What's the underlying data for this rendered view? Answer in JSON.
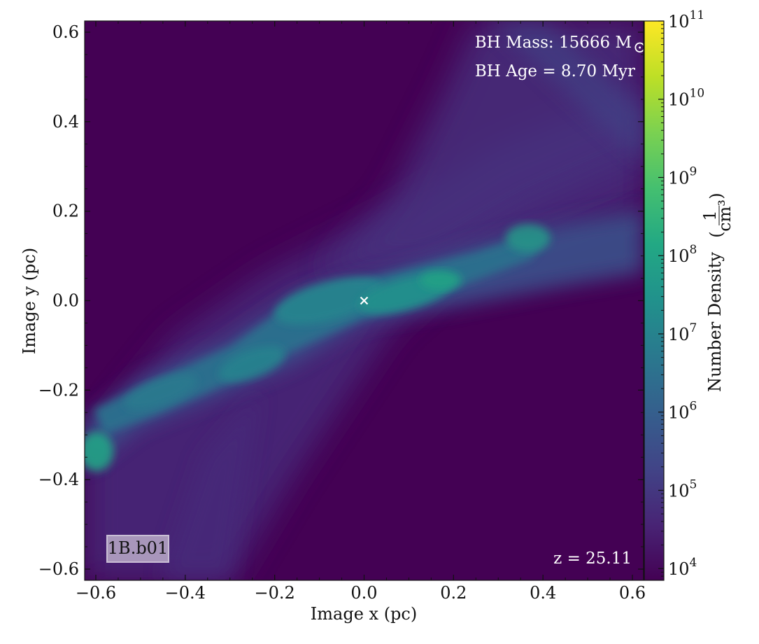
{
  "chart_data": {
    "type": "heatmap",
    "title": "",
    "xlabel": "Image x  (pc)",
    "ylabel": "Image y  (pc)",
    "xlim": [
      -0.625,
      0.625
    ],
    "ylim": [
      -0.625,
      0.625
    ],
    "xticks": [
      -0.6,
      -0.4,
      -0.2,
      0.0,
      0.2,
      0.4,
      0.6
    ],
    "yticks": [
      -0.6,
      -0.4,
      -0.2,
      0.0,
      0.2,
      0.4,
      0.6
    ],
    "xtick_labels": [
      "−0.6",
      "−0.4",
      "−0.2",
      "0.0",
      "0.2",
      "0.4",
      "0.6"
    ],
    "ytick_labels": [
      "−0.6",
      "−0.4",
      "−0.2",
      "0.0",
      "0.2",
      "0.4",
      "0.6"
    ],
    "colorbar": {
      "label": "Number Density",
      "unit_numerator": "1",
      "unit_denominator": "cm³",
      "scale": "log",
      "exponent_range": [
        3.85,
        11.0
      ],
      "ticks": [
        {
          "base": "10",
          "exp": "4",
          "value": 4
        },
        {
          "base": "10",
          "exp": "5",
          "value": 5
        },
        {
          "base": "10",
          "exp": "6",
          "value": 6
        },
        {
          "base": "10",
          "exp": "7",
          "value": 7
        },
        {
          "base": "10",
          "exp": "8",
          "value": 8
        },
        {
          "base": "10",
          "exp": "9",
          "value": 9
        },
        {
          "base": "10",
          "exp": "10",
          "value": 10
        },
        {
          "base": "10",
          "exp": "11",
          "value": 11
        }
      ],
      "colormap": "viridis"
    },
    "annotations": {
      "bh_mass": "BH Mass: 15666 M",
      "bh_mass_symbol": "⊙",
      "bh_age": "BH Age = 8.70 Myr",
      "redshift": "z = 25.11",
      "run_label": "1B.b01",
      "bh_position": {
        "x": 0.0,
        "y": 0.0
      }
    }
  },
  "colors": {
    "background_field": "#440154",
    "marker": "#ffffff",
    "tag_fill": "#b3a3c3"
  }
}
